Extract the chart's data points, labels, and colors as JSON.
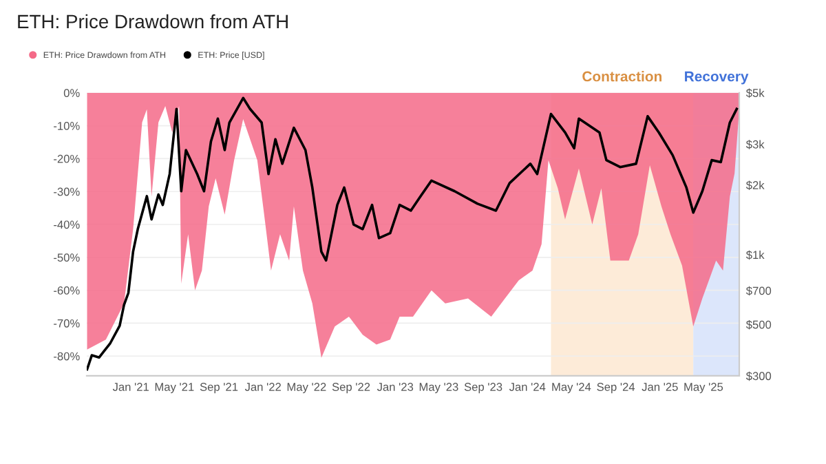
{
  "chart_data": {
    "type": "area",
    "title": "ETH: Price Drawdown from ATH",
    "legend": "top left",
    "grid": "y",
    "log": "y2",
    "xlim": [
      "2020-09-01",
      "2025-08-08"
    ],
    "ylim": [
      -86,
      0
    ],
    "y2lim": [
      300,
      5000
    ],
    "xticks": [
      {
        "value": "2021-01-01",
        "label": "Jan '21"
      },
      {
        "value": "2021-05-01",
        "label": "May '21"
      },
      {
        "value": "2021-09-01",
        "label": "Sep '21"
      },
      {
        "value": "2022-01-01",
        "label": "Jan '22"
      },
      {
        "value": "2022-05-01",
        "label": "May '22"
      },
      {
        "value": "2022-09-01",
        "label": "Sep '22"
      },
      {
        "value": "2023-01-01",
        "label": "Jan '23"
      },
      {
        "value": "2023-05-01",
        "label": "May '23"
      },
      {
        "value": "2023-09-01",
        "label": "Sep '23"
      },
      {
        "value": "2024-01-01",
        "label": "Jan '24"
      },
      {
        "value": "2024-05-01",
        "label": "May '24"
      },
      {
        "value": "2024-09-01",
        "label": "Sep '24"
      },
      {
        "value": "2025-01-01",
        "label": "Jan '25"
      },
      {
        "value": "2025-05-01",
        "label": "May '25"
      }
    ],
    "yticks": [
      {
        "value": 0,
        "label": "0%"
      },
      {
        "value": -10,
        "label": "-10%"
      },
      {
        "value": -20,
        "label": "-20%"
      },
      {
        "value": -30,
        "label": "-30%"
      },
      {
        "value": -40,
        "label": "-40%"
      },
      {
        "value": -50,
        "label": "-50%"
      },
      {
        "value": -60,
        "label": "-60%"
      },
      {
        "value": -70,
        "label": "-70%"
      },
      {
        "value": -80,
        "label": "-80%"
      }
    ],
    "y2ticks": [
      {
        "value": 300,
        "label": "$300"
      },
      {
        "value": 500,
        "label": "$500"
      },
      {
        "value": 700,
        "label": "$700"
      },
      {
        "value": 1000,
        "label": "$1k"
      },
      {
        "value": 2000,
        "label": "$2k"
      },
      {
        "value": 3000,
        "label": "$3k"
      },
      {
        "value": 5000,
        "label": "$5k"
      }
    ],
    "bands": [
      {
        "axis": "x",
        "from": "2024-03-06",
        "to": "2025-04-03",
        "label": "Contraction",
        "color": "#fdebd8"
      },
      {
        "axis": "x",
        "from": "2025-04-03",
        "to": "2025-08-08",
        "label": "Recovery",
        "color": "#dce6fb"
      }
    ],
    "series": [
      {
        "name": "ETH: Price Drawdown from ATH",
        "color": "#f46a88",
        "x": [
          "2020-09-02",
          "2020-10-24",
          "2020-12-13",
          "2021-01-07",
          "2021-02-01",
          "2021-02-14",
          "2021-02-27",
          "2021-03-18",
          "2021-04-06",
          "2021-04-25",
          "2021-05-14",
          "2021-05-20",
          "2021-06-08",
          "2021-06-27",
          "2021-07-16",
          "2021-08-04",
          "2021-08-23",
          "2021-09-17",
          "2021-10-13",
          "2021-11-07",
          "2021-12-16",
          "2022-01-04",
          "2022-01-23",
          "2022-02-17",
          "2022-03-14",
          "2022-03-27",
          "2022-04-21",
          "2022-05-17",
          "2022-06-11",
          "2022-07-18",
          "2022-08-26",
          "2022-10-03",
          "2022-11-10",
          "2022-12-18",
          "2023-01-13",
          "2023-02-19",
          "2023-04-11",
          "2023-05-19",
          "2023-07-21",
          "2023-09-23",
          "2023-10-31",
          "2023-12-08",
          "2024-01-15",
          "2024-02-09",
          "2024-02-28",
          "2024-03-25",
          "2024-04-14",
          "2024-05-22",
          "2024-06-28",
          "2024-07-23",
          "2024-08-17",
          "2024-10-07",
          "2024-11-02",
          "2024-12-04",
          "2025-01-05",
          "2025-01-30",
          "2025-03-03",
          "2025-04-03",
          "2025-04-28",
          "2025-06-05",
          "2025-06-24",
          "2025-07-13",
          "2025-07-26",
          "2025-08-08"
        ],
        "values": [
          -78,
          -75,
          -64,
          -41.5,
          -9,
          -5,
          -31.5,
          -9,
          -4,
          -12,
          -4,
          -58,
          -43,
          -60,
          -54,
          -34.5,
          -26,
          -37,
          -20.5,
          -8,
          -20.5,
          -37,
          -54,
          -43,
          -51,
          -34.5,
          -54,
          -64,
          -80.5,
          -71,
          -68,
          -73.5,
          -76.5,
          -75,
          -68,
          -68,
          -60,
          -64,
          -62.5,
          -68,
          -62.5,
          -57,
          -54,
          -46,
          -20.5,
          -29,
          -38.5,
          -23,
          -40,
          -29,
          -51,
          -51,
          -43,
          -22,
          -34.5,
          -43,
          -52.5,
          -71,
          -62.5,
          -51,
          -54,
          -31.5,
          -24.5,
          -5
        ]
      },
      {
        "name": "ETH: Price [USD]",
        "type": "line",
        "axis": "y2",
        "color": "#000000",
        "x": [
          "2020-09-02",
          "2020-09-15",
          "2020-10-05",
          "2020-11-05",
          "2020-12-01",
          "2020-12-13",
          "2020-12-25",
          "2021-01-07",
          "2021-01-20",
          "2021-02-14",
          "2021-02-27",
          "2021-03-18",
          "2021-03-30",
          "2021-04-18",
          "2021-05-07",
          "2021-05-20",
          "2021-06-02",
          "2021-07-03",
          "2021-07-22",
          "2021-08-10",
          "2021-08-29",
          "2021-09-17",
          "2021-09-30",
          "2021-11-07",
          "2021-11-26",
          "2021-12-28",
          "2022-01-16",
          "2022-02-04",
          "2022-02-23",
          "2022-03-27",
          "2022-04-28",
          "2022-05-17",
          "2022-06-11",
          "2022-06-24",
          "2022-07-25",
          "2022-08-13",
          "2022-09-08",
          "2022-10-03",
          "2022-10-29",
          "2022-11-17",
          "2022-12-18",
          "2023-01-13",
          "2023-02-13",
          "2023-03-11",
          "2023-04-11",
          "2023-06-14",
          "2023-08-16",
          "2023-10-06",
          "2023-11-13",
          "2024-01-09",
          "2024-01-28",
          "2024-03-06",
          "2024-04-14",
          "2024-05-09",
          "2024-05-22",
          "2024-07-18",
          "2024-08-06",
          "2024-09-13",
          "2024-10-27",
          "2024-11-28",
          "2024-12-29",
          "2025-02-05",
          "2025-03-15",
          "2025-04-03",
          "2025-04-28",
          "2025-05-24",
          "2025-06-18",
          "2025-07-13",
          "2025-08-01"
        ],
        "values": [
          320,
          368,
          360,
          415,
          494,
          607,
          684,
          1030,
          1290,
          1790,
          1420,
          1820,
          1640,
          2230,
          4260,
          1880,
          2830,
          2230,
          1880,
          3080,
          3870,
          2830,
          3720,
          4750,
          4260,
          3720,
          2230,
          3150,
          2470,
          3530,
          2830,
          1950,
          1030,
          945,
          1640,
          1950,
          1350,
          1290,
          1640,
          1180,
          1240,
          1640,
          1550,
          1780,
          2090,
          1880,
          1660,
          1550,
          2040,
          2470,
          2230,
          4050,
          3370,
          2880,
          3870,
          3370,
          2560,
          2390,
          2470,
          3960,
          3370,
          2690,
          1950,
          1520,
          1880,
          2560,
          2510,
          3720,
          4260
        ]
      }
    ]
  }
}
